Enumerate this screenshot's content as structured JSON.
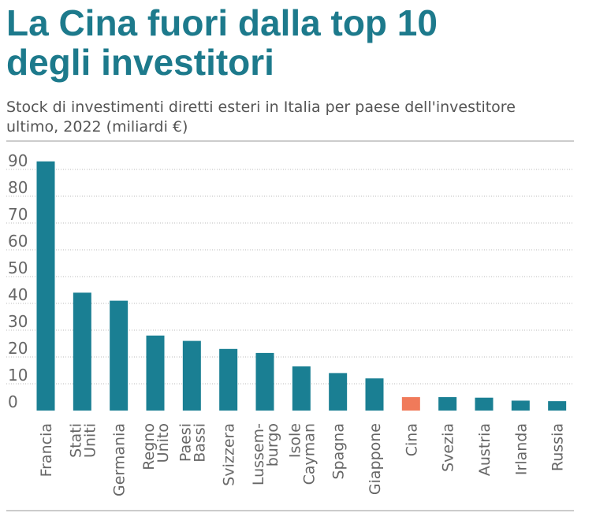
{
  "title_line1": "La Cina fuori dalla top 10",
  "title_line2": "degli investitori",
  "subtitle_line1": "Stock di investimenti diretti esteri in Italia per paese dell'investitore",
  "subtitle_line2": "ultimo, 2022 (miliardi €)",
  "colors": {
    "bar": "#1a7f93",
    "highlight": "#f07a5a",
    "title": "#1d7a8c",
    "text": "#666666",
    "grid": "#bbbbbb"
  },
  "chart_data": {
    "type": "bar",
    "title": "La Cina fuori dalla top 10 degli investitori",
    "subtitle": "Stock di investimenti diretti esteri in Italia per paese dell'investitore ultimo, 2022 (miliardi €)",
    "xlabel": "",
    "ylabel": "",
    "ylim": [
      0,
      95
    ],
    "yticks": [
      0,
      10,
      20,
      30,
      40,
      50,
      60,
      70,
      80,
      90
    ],
    "grid": true,
    "highlight": "Cina",
    "categories": [
      [
        "Francia"
      ],
      [
        "Stati",
        "Uniti"
      ],
      [
        "Germania"
      ],
      [
        "Regno",
        "Unito"
      ],
      [
        "Paesi",
        "Bassi"
      ],
      [
        "Svizzera"
      ],
      [
        "Lussem-",
        "burgo"
      ],
      [
        "Isole",
        "Cayman"
      ],
      [
        "Spagna"
      ],
      [
        "Giappone"
      ],
      [
        "Cina"
      ],
      [
        "Svezia"
      ],
      [
        "Austria"
      ],
      [
        "Irlanda"
      ],
      [
        "Russia"
      ]
    ],
    "values": [
      93,
      44,
      41,
      28,
      26,
      23,
      21.5,
      16.5,
      14,
      12,
      5,
      5,
      4.8,
      3.7,
      3.5
    ]
  }
}
